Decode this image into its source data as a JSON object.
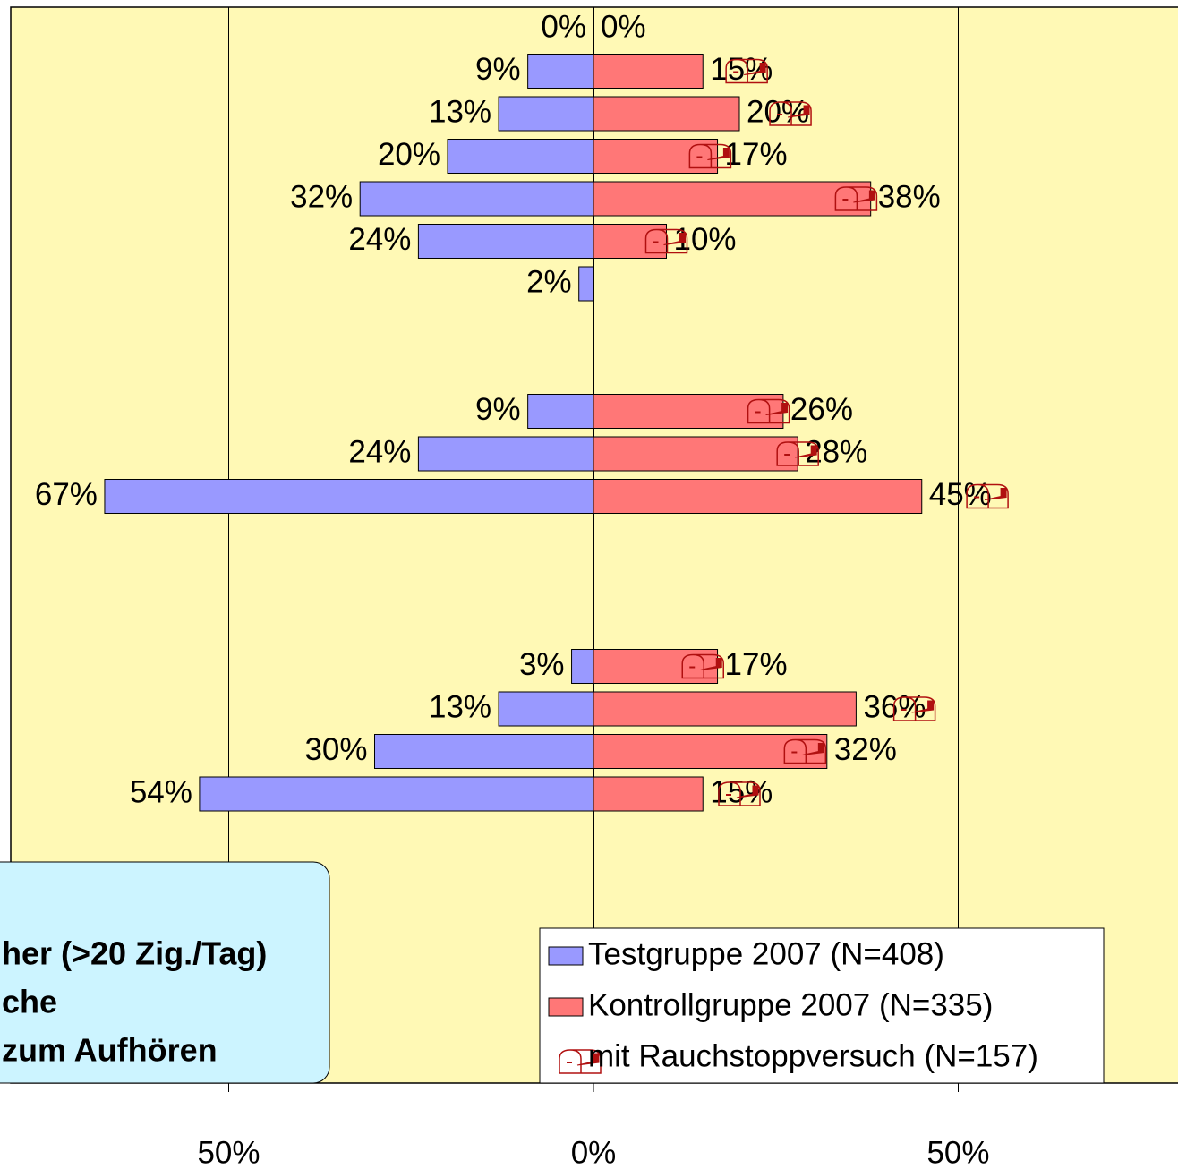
{
  "chart_data": {
    "type": "diverging-bar",
    "categories": [
      null,
      null,
      null,
      null,
      null,
      null,
      null,
      null,
      null,
      null,
      null,
      null,
      null,
      null,
      null,
      null,
      null,
      null,
      null
    ],
    "series": [
      {
        "name": "Testgruppe 2007 (N=408)",
        "color": "#9999ff",
        "values": [
          0,
          -9,
          -13,
          -20,
          -32,
          -24,
          -2,
          null,
          null,
          -9,
          -24,
          -67,
          null,
          null,
          null,
          -3,
          -13,
          -30,
          -54
        ],
        "value_labels": [
          "0%",
          "9%",
          "13%",
          "20%",
          "32%",
          "24%",
          "2%",
          null,
          null,
          "9%",
          "24%",
          "67%",
          null,
          null,
          null,
          "3%",
          "13%",
          "30%",
          "54%"
        ]
      },
      {
        "name": "Kontrollgruppe 2007 (N=335)",
        "color": "#ff7777",
        "values": [
          0,
          15,
          20,
          17,
          38,
          10,
          null,
          null,
          null,
          26,
          28,
          45,
          null,
          null,
          null,
          17,
          36,
          32,
          15
        ],
        "value_labels": [
          "0%",
          "15%",
          "20%",
          "17%",
          "38%",
          "10%",
          null,
          null,
          null,
          "26%",
          "28%",
          "45%",
          null,
          null,
          null,
          "17%",
          "36%",
          "32%",
          "15%"
        ]
      },
      {
        "name": "mit Rauchstoppversuch (N=157)",
        "color": "#b01010",
        "marker": "mailbox",
        "values": [
          null,
          21,
          27,
          16,
          36,
          10,
          null,
          null,
          null,
          24,
          28,
          54,
          null,
          null,
          null,
          15,
          44,
          29,
          20
        ]
      }
    ],
    "zero_label_color": "#ffff66",
    "xlim": [
      -80,
      80
    ],
    "xticks": [
      {
        "value": -50,
        "label": "50%"
      },
      {
        "value": 0,
        "label": "0%"
      },
      {
        "value": 50,
        "label": "50%"
      }
    ],
    "grid": true,
    "background": "#fff9b5",
    "legend": "bottom-right",
    "text_box": {
      "lines": [
        "her (>20 Zig./Tag)",
        "che",
        "zum Aufhören"
      ],
      "color": "#ccf4ff"
    }
  }
}
